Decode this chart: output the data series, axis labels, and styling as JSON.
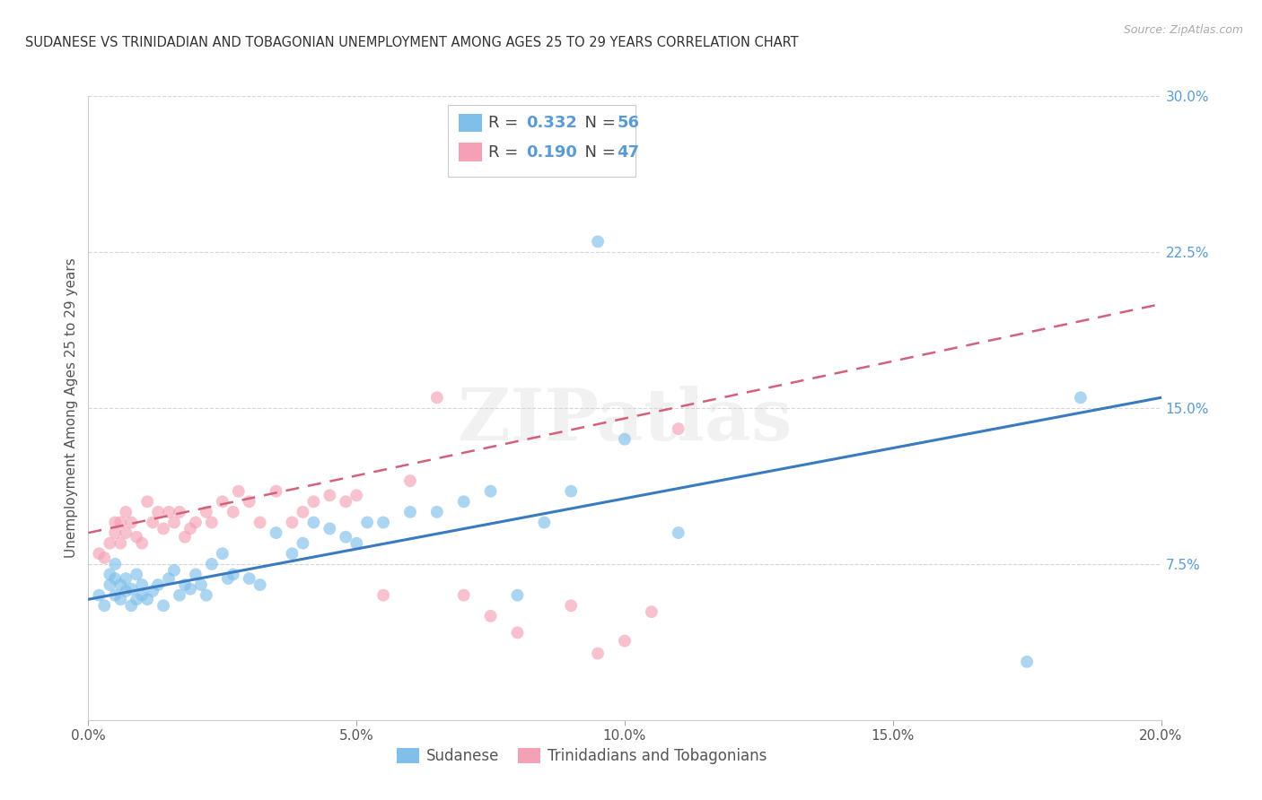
{
  "title": "SUDANESE VS TRINIDADIAN AND TOBAGONIAN UNEMPLOYMENT AMONG AGES 25 TO 29 YEARS CORRELATION CHART",
  "source": "Source: ZipAtlas.com",
  "ylabel": "Unemployment Among Ages 25 to 29 years",
  "xlim": [
    0.0,
    0.2
  ],
  "ylim": [
    0.0,
    0.3
  ],
  "xticks": [
    0.0,
    0.05,
    0.1,
    0.15,
    0.2
  ],
  "xtick_labels": [
    "0.0%",
    "5.0%",
    "10.0%",
    "15.0%",
    "20.0%"
  ],
  "yticks": [
    0.0,
    0.075,
    0.15,
    0.225,
    0.3
  ],
  "ytick_labels": [
    "",
    "7.5%",
    "15.0%",
    "22.5%",
    "30.0%"
  ],
  "blue_color": "#7fbfea",
  "pink_color": "#f4a0b5",
  "blue_line_color": "#3a7abf",
  "pink_line_color": "#d4607a",
  "blue_label": "Sudanese",
  "pink_label": "Trinidadians and Tobagonians",
  "legend_R_blue": "0.332",
  "legend_N_blue": "56",
  "legend_R_pink": "0.190",
  "legend_N_pink": "47",
  "watermark": "ZIPatlas",
  "background_color": "#ffffff",
  "grid_color": "#cccccc",
  "blue_scatter_x": [
    0.002,
    0.003,
    0.004,
    0.004,
    0.005,
    0.005,
    0.005,
    0.006,
    0.006,
    0.007,
    0.007,
    0.008,
    0.008,
    0.009,
    0.009,
    0.01,
    0.01,
    0.011,
    0.012,
    0.013,
    0.014,
    0.015,
    0.016,
    0.017,
    0.018,
    0.019,
    0.02,
    0.021,
    0.022,
    0.023,
    0.025,
    0.026,
    0.027,
    0.03,
    0.032,
    0.035,
    0.038,
    0.04,
    0.042,
    0.045,
    0.048,
    0.05,
    0.052,
    0.055,
    0.06,
    0.065,
    0.07,
    0.075,
    0.08,
    0.085,
    0.09,
    0.095,
    0.1,
    0.11,
    0.175,
    0.185
  ],
  "blue_scatter_y": [
    0.06,
    0.055,
    0.065,
    0.07,
    0.06,
    0.068,
    0.075,
    0.058,
    0.065,
    0.062,
    0.068,
    0.055,
    0.063,
    0.058,
    0.07,
    0.06,
    0.065,
    0.058,
    0.062,
    0.065,
    0.055,
    0.068,
    0.072,
    0.06,
    0.065,
    0.063,
    0.07,
    0.065,
    0.06,
    0.075,
    0.08,
    0.068,
    0.07,
    0.068,
    0.065,
    0.09,
    0.08,
    0.085,
    0.095,
    0.092,
    0.088,
    0.085,
    0.095,
    0.095,
    0.1,
    0.1,
    0.105,
    0.11,
    0.06,
    0.095,
    0.11,
    0.23,
    0.135,
    0.09,
    0.028,
    0.155
  ],
  "pink_scatter_x": [
    0.002,
    0.003,
    0.004,
    0.005,
    0.005,
    0.006,
    0.006,
    0.007,
    0.007,
    0.008,
    0.009,
    0.01,
    0.011,
    0.012,
    0.013,
    0.014,
    0.015,
    0.016,
    0.017,
    0.018,
    0.019,
    0.02,
    0.022,
    0.023,
    0.025,
    0.027,
    0.028,
    0.03,
    0.032,
    0.035,
    0.038,
    0.04,
    0.042,
    0.045,
    0.048,
    0.05,
    0.055,
    0.06,
    0.065,
    0.07,
    0.075,
    0.08,
    0.09,
    0.095,
    0.1,
    0.105,
    0.11
  ],
  "pink_scatter_y": [
    0.08,
    0.078,
    0.085,
    0.09,
    0.095,
    0.085,
    0.095,
    0.09,
    0.1,
    0.095,
    0.088,
    0.085,
    0.105,
    0.095,
    0.1,
    0.092,
    0.1,
    0.095,
    0.1,
    0.088,
    0.092,
    0.095,
    0.1,
    0.095,
    0.105,
    0.1,
    0.11,
    0.105,
    0.095,
    0.11,
    0.095,
    0.1,
    0.105,
    0.108,
    0.105,
    0.108,
    0.06,
    0.115,
    0.155,
    0.06,
    0.05,
    0.042,
    0.055,
    0.032,
    0.038,
    0.052,
    0.14
  ],
  "blue_trend_x": [
    0.0,
    0.2
  ],
  "blue_trend_y": [
    0.058,
    0.155
  ],
  "pink_trend_x": [
    0.0,
    0.2
  ],
  "pink_trend_y": [
    0.09,
    0.2
  ]
}
